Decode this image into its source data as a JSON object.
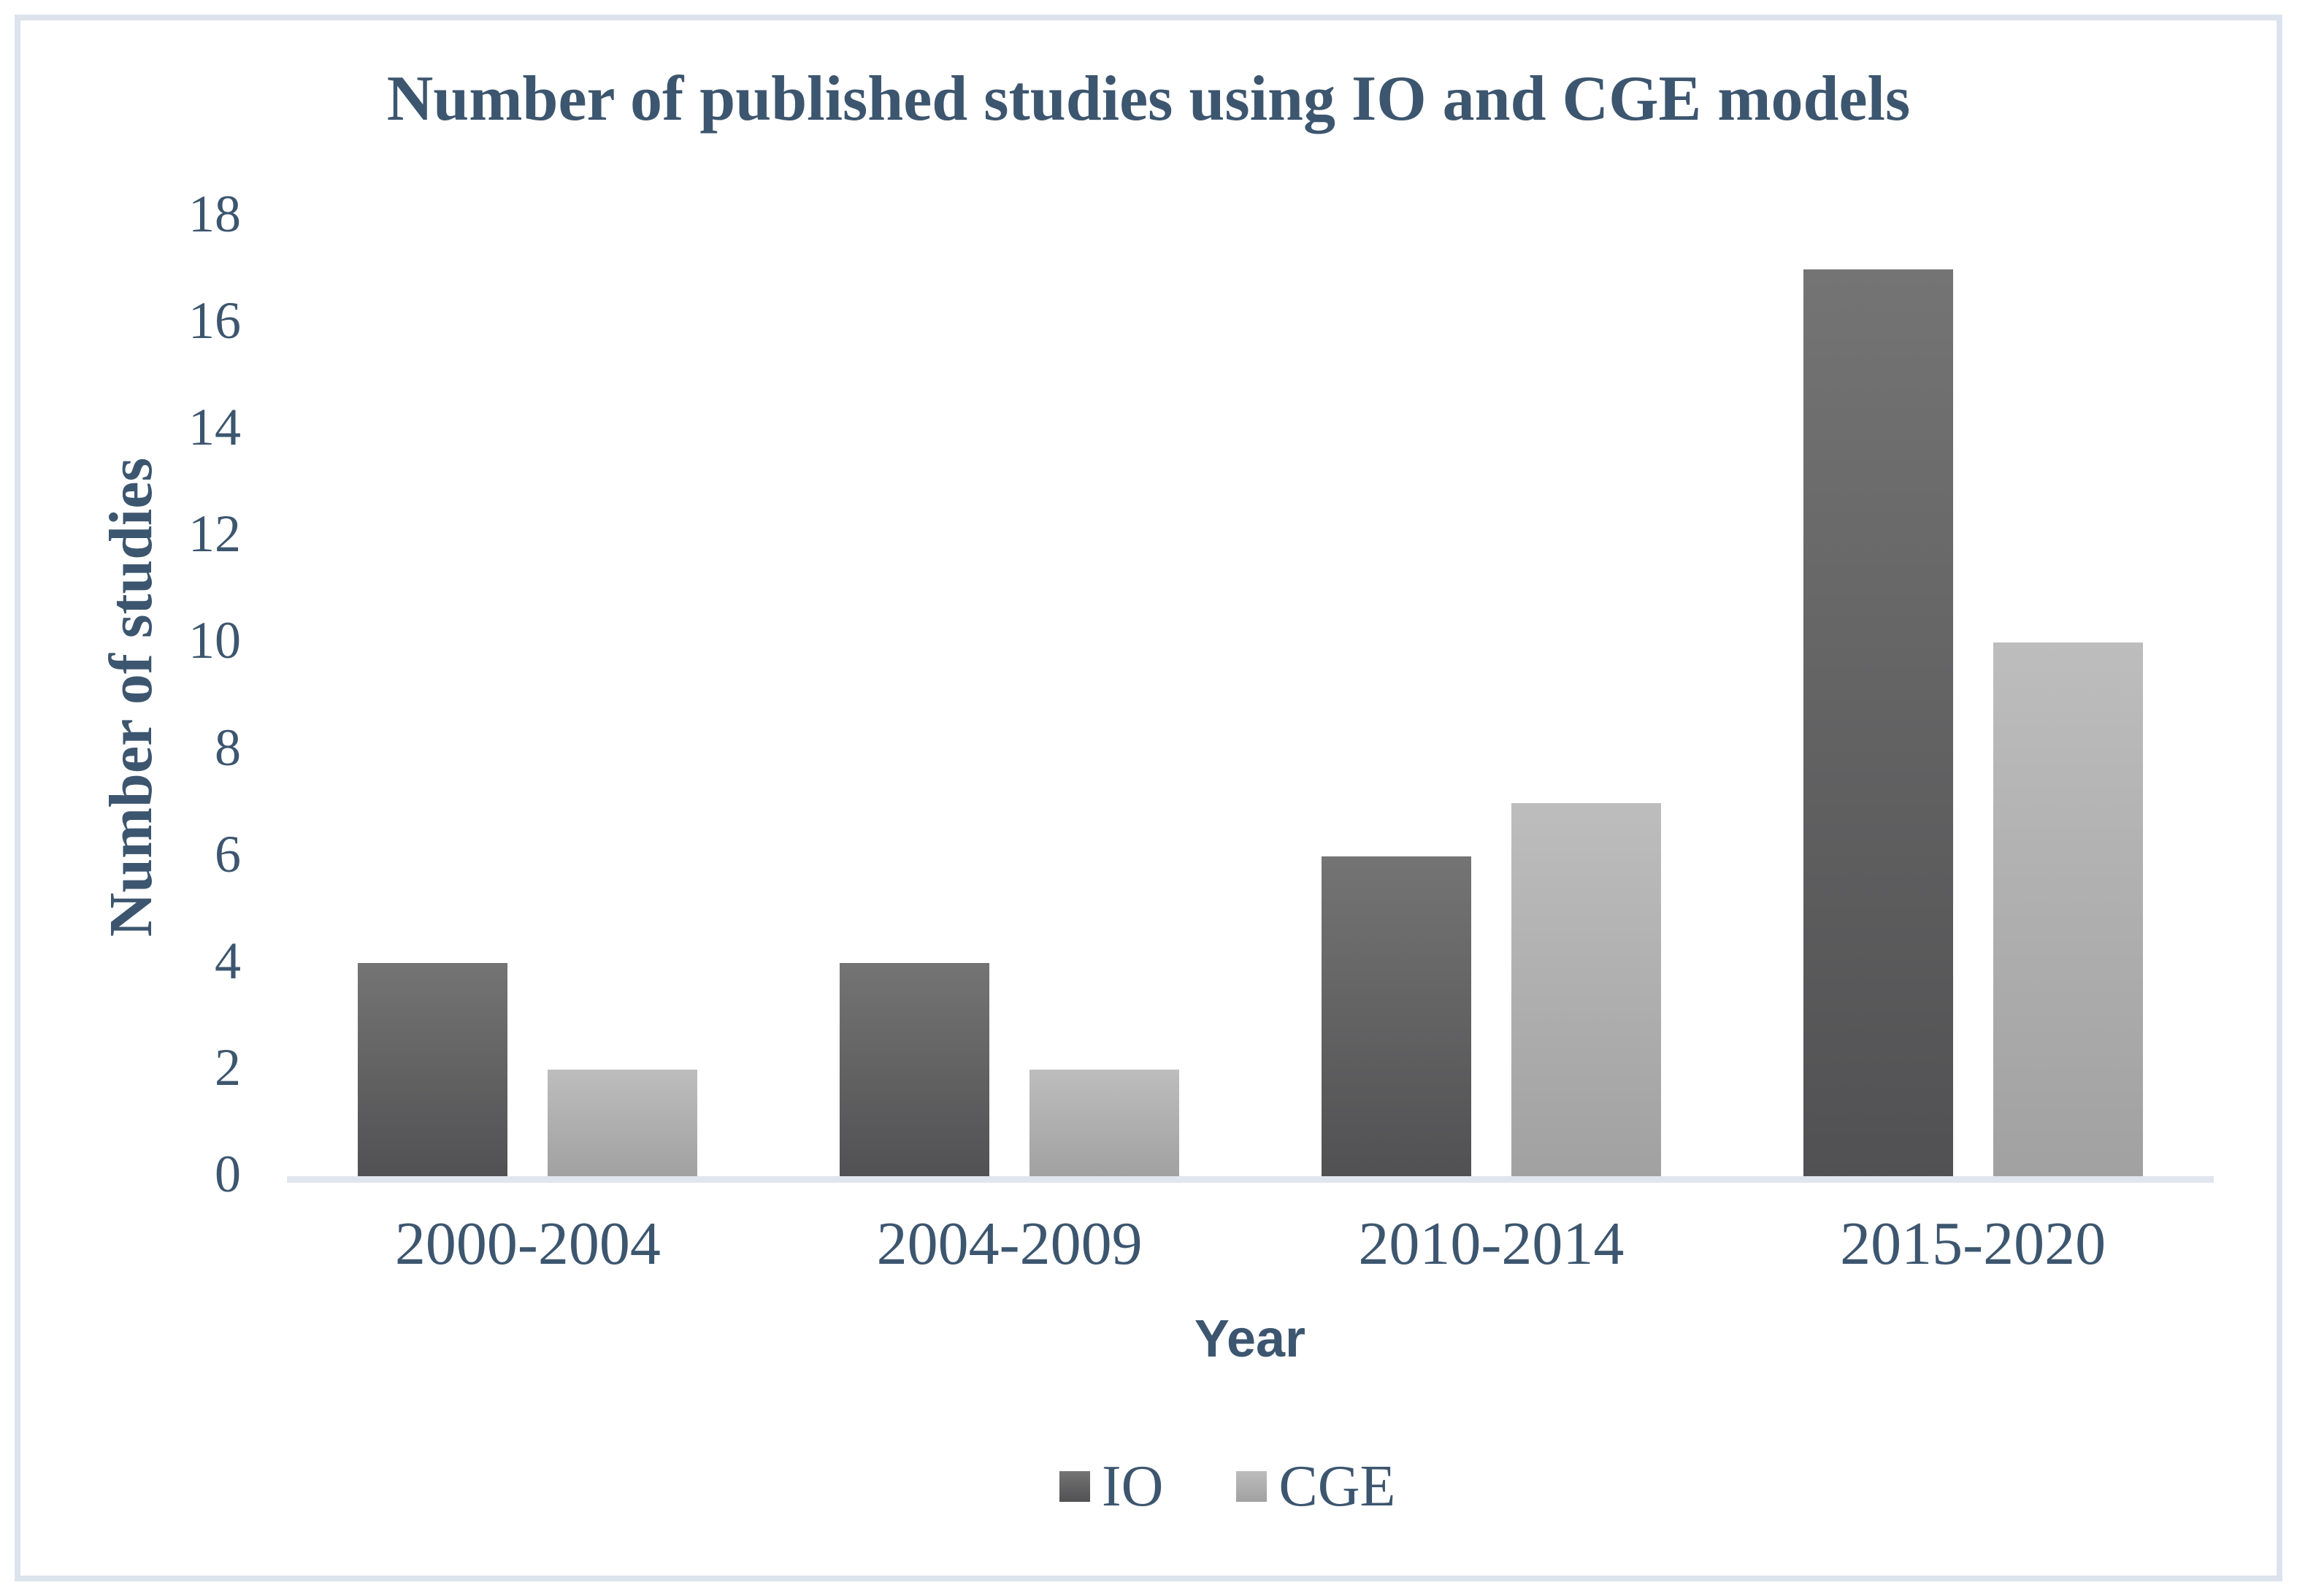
{
  "frame": {
    "border_color": "#dce3ec"
  },
  "title": "Number of published studies using IO and CGE models",
  "chart_data": {
    "type": "bar",
    "title": "Number of published studies using IO and CGE models",
    "categories": [
      "2000-2004",
      "2004-2009",
      "2010-2014",
      "2015-2020"
    ],
    "series": [
      {
        "name": "IO",
        "values": [
          4,
          4,
          6,
          17
        ],
        "color_top": "#747474",
        "color_bottom": "#515153"
      },
      {
        "name": "CGE",
        "values": [
          2,
          2,
          7,
          10
        ],
        "color_top": "#bdbdbd",
        "color_bottom": "#a1a1a1"
      }
    ],
    "xlabel": "Year",
    "ylabel": "Number of studies",
    "ylim": [
      0,
      18
    ],
    "ytick_step": 2,
    "yticks": [
      "0",
      "2",
      "4",
      "6",
      "8",
      "10",
      "12",
      "14",
      "16",
      "18"
    ],
    "grid": false,
    "legend_position": "bottom",
    "text_color": "#3d566f",
    "axis_line_color": "#dfe6ee"
  }
}
